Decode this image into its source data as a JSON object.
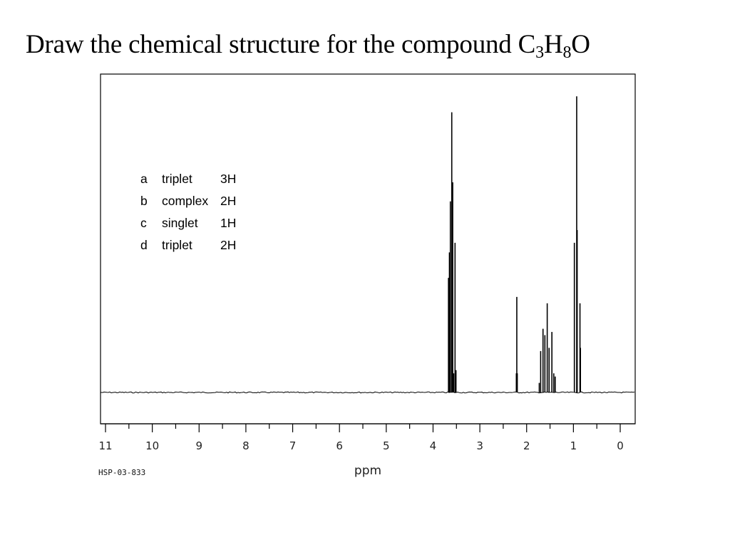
{
  "title": {
    "prefix": "Draw the chemical structure for the compound C",
    "sub1": "3",
    "mid": "H",
    "sub2": "8",
    "suffix": "O"
  },
  "peak_table": [
    {
      "letter": "a",
      "multiplicity": "triplet",
      "integration": "3H"
    },
    {
      "letter": "b",
      "multiplicity": "complex",
      "integration": "2H"
    },
    {
      "letter": "c",
      "multiplicity": "singlet",
      "integration": "1H"
    },
    {
      "letter": "d",
      "multiplicity": "triplet",
      "integration": "2H"
    }
  ],
  "chart_data": {
    "type": "line",
    "title": "",
    "xlabel": "ppm",
    "ylabel": "",
    "xlim": [
      11,
      0
    ],
    "ylim": [
      0,
      1
    ],
    "x_reversed": true,
    "grid": false,
    "legend": "none",
    "xticks": [
      11,
      10,
      9,
      8,
      7,
      6,
      5,
      4,
      3,
      2,
      1,
      0
    ],
    "footer_code": "HSP-03-833",
    "series": [
      {
        "peaks": [
          {
            "x": 3.67,
            "y": 0.36
          },
          {
            "x": 3.65,
            "y": 0.44
          },
          {
            "x": 3.63,
            "y": 0.6
          },
          {
            "x": 3.6,
            "y": 0.88
          },
          {
            "x": 3.58,
            "y": 0.66
          },
          {
            "x": 3.56,
            "y": 0.06
          },
          {
            "x": 3.53,
            "y": 0.47
          },
          {
            "x": 3.51,
            "y": 0.07
          },
          {
            "x": 2.22,
            "y": 0.06
          },
          {
            "x": 2.21,
            "y": 0.3
          },
          {
            "x": 2.2,
            "y": 0.06
          },
          {
            "x": 1.73,
            "y": 0.03
          },
          {
            "x": 1.7,
            "y": 0.13
          },
          {
            "x": 1.65,
            "y": 0.2
          },
          {
            "x": 1.61,
            "y": 0.18
          },
          {
            "x": 1.56,
            "y": 0.28
          },
          {
            "x": 1.52,
            "y": 0.14
          },
          {
            "x": 1.46,
            "y": 0.19
          },
          {
            "x": 1.42,
            "y": 0.06
          },
          {
            "x": 1.39,
            "y": 0.05
          },
          {
            "x": 0.98,
            "y": 0.47
          },
          {
            "x": 0.93,
            "y": 0.93
          },
          {
            "x": 0.92,
            "y": 0.51
          },
          {
            "x": 0.86,
            "y": 0.28
          },
          {
            "x": 0.85,
            "y": 0.14
          }
        ]
      }
    ]
  }
}
